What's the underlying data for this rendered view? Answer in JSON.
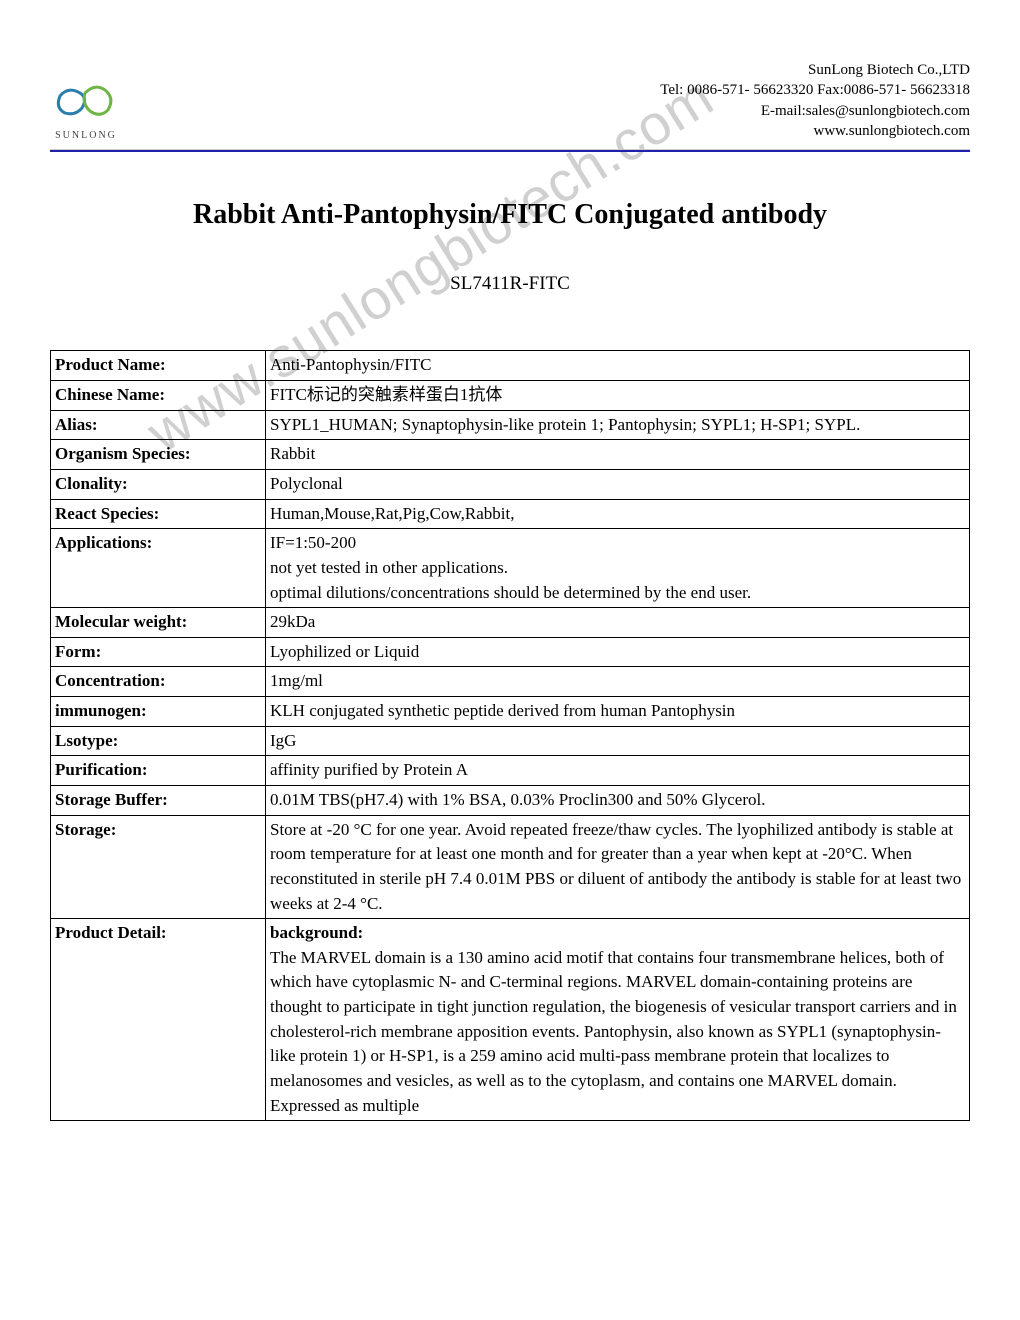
{
  "header": {
    "logo_text": "SUNLONG",
    "company": "SunLong Biotech Co.,LTD",
    "tel_fax": "Tel: 0086-571- 56623320 Fax:0086-571- 56623318",
    "email": "E-mail:sales@sunlongbiotech.com",
    "website": "www.sunlongbiotech.com"
  },
  "title": "Rabbit Anti-Pantophysin/FITC Conjugated antibody",
  "product_code": "SL7411R-FITC",
  "watermark": "www.sunlongbiotech.com",
  "rows": [
    {
      "label": "Product Name:",
      "value": "Anti-Pantophysin/FITC"
    },
    {
      "label": "Chinese Name:",
      "value": "FITC标记的突触素样蛋白1抗体"
    },
    {
      "label": "Alias:",
      "value": "SYPL1_HUMAN; Synaptophysin-like protein 1; Pantophysin; SYPL1; H-SP1; SYPL."
    },
    {
      "label": "Organism Species:",
      "value": "Rabbit"
    },
    {
      "label": "Clonality:",
      "value": "Polyclonal"
    },
    {
      "label": "React Species:",
      "value": "Human,Mouse,Rat,Pig,Cow,Rabbit,"
    },
    {
      "label": "Applications:",
      "value": "IF=1:50-200\nnot yet tested in other applications.\noptimal dilutions/concentrations should be determined by the end user."
    },
    {
      "label": "Molecular weight:",
      "value": "29kDa"
    },
    {
      "label": "Form:",
      "value": "Lyophilized or Liquid"
    },
    {
      "label": "Concentration:",
      "value": "1mg/ml"
    },
    {
      "label": "immunogen:",
      "value": "KLH conjugated synthetic peptide derived from human Pantophysin"
    },
    {
      "label": "Lsotype:",
      "value": "IgG"
    },
    {
      "label": "Purification:",
      "value": "affinity purified by Protein A"
    },
    {
      "label": "Storage Buffer:",
      "value": "0.01M TBS(pH7.4) with 1% BSA, 0.03% Proclin300 and 50% Glycerol."
    },
    {
      "label": "Storage:",
      "value": "Store at -20 °C for one year. Avoid repeated freeze/thaw cycles. The lyophilized antibody is stable at room temperature for at least one month and for greater than a year when kept at -20°C. When reconstituted in sterile pH 7.4 0.01M PBS or diluent of antibody the antibody is stable for at least two weeks at 2-4 °C."
    }
  ],
  "product_detail": {
    "label": "Product Detail:",
    "heading": "background:",
    "text": "The MARVEL domain is a 130 amino acid motif that contains four transmembrane helices, both of which have cytoplasmic N- and C-terminal regions. MARVEL domain-containing proteins are thought to participate in tight junction regulation, the biogenesis of vesicular transport carriers and in cholesterol-rich membrane apposition events. Pantophysin, also known as SYPL1 (synaptophysin-like protein 1) or H-SP1, is a 259 amino acid multi-pass membrane protein that localizes to melanosomes and vesicles, as well as to the cytoplasm, and contains one MARVEL domain. Expressed as multiple"
  },
  "logo_colors": {
    "blue": "#2a7eab",
    "green": "#6db544"
  }
}
